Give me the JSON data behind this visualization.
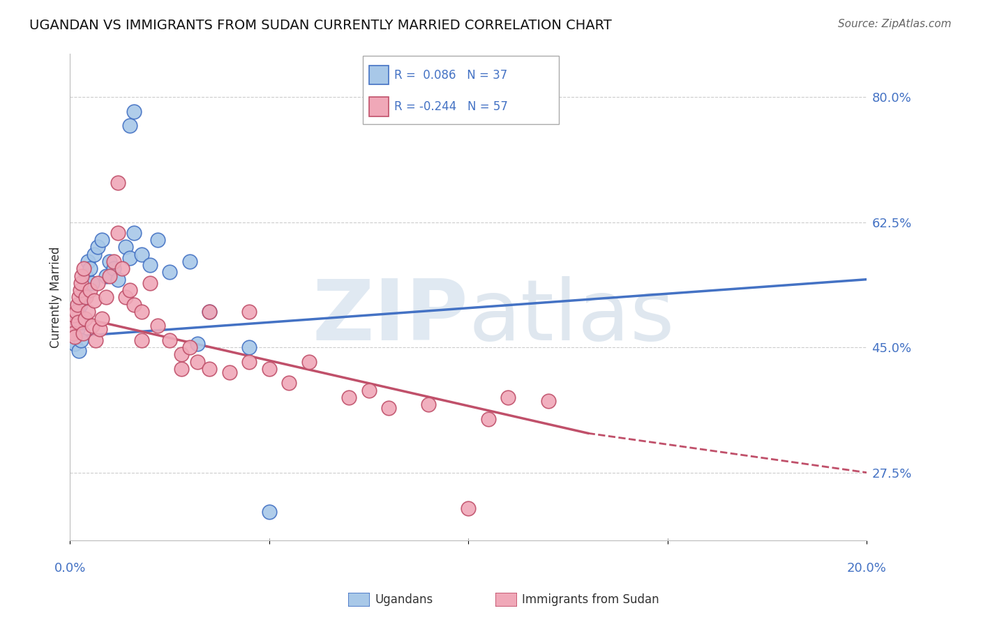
{
  "title": "UGANDAN VS IMMIGRANTS FROM SUDAN CURRENTLY MARRIED CORRELATION CHART",
  "source": "Source: ZipAtlas.com",
  "ylabel": "Currently Married",
  "r_ugandan": 0.086,
  "n_ugandan": 37,
  "r_sudan": -0.244,
  "n_sudan": 57,
  "y_ticks": [
    27.5,
    45.0,
    62.5,
    80.0
  ],
  "x_range": [
    0.0,
    20.0
  ],
  "y_range": [
    18.0,
    86.0
  ],
  "color_ugandan": "#A8C8E8",
  "color_sudan": "#F0A8B8",
  "line_color_ugandan": "#4472C4",
  "line_color_sudan": "#C0506A",
  "watermark_color": "#D0DCE8",
  "blue_trend_x0": 0.0,
  "blue_trend_y0": 46.5,
  "blue_trend_x1": 20.0,
  "blue_trend_y1": 54.5,
  "pink_solid_x0": 0.0,
  "pink_solid_y0": 49.5,
  "pink_solid_x1": 13.0,
  "pink_solid_y1": 33.0,
  "pink_dash_x0": 13.0,
  "pink_dash_y0": 33.0,
  "pink_dash_x1": 20.0,
  "pink_dash_y1": 27.5,
  "ugandan_x": [
    0.05,
    0.08,
    0.1,
    0.12,
    0.15,
    0.18,
    0.2,
    0.22,
    0.25,
    0.28,
    0.3,
    0.35,
    0.4,
    0.45,
    0.5,
    0.55,
    0.6,
    0.7,
    0.8,
    0.9,
    1.0,
    1.1,
    1.2,
    1.4,
    1.5,
    1.6,
    1.8,
    2.0,
    2.2,
    2.5,
    3.0,
    3.2,
    3.5,
    4.5,
    5.0,
    1.5,
    1.6
  ],
  "ugandan_y": [
    47.0,
    46.0,
    48.0,
    45.5,
    49.0,
    47.5,
    50.0,
    44.5,
    51.0,
    46.0,
    48.5,
    52.0,
    55.0,
    57.0,
    56.0,
    54.0,
    58.0,
    59.0,
    60.0,
    55.0,
    57.0,
    56.0,
    54.5,
    59.0,
    57.5,
    61.0,
    58.0,
    56.5,
    60.0,
    55.5,
    57.0,
    45.5,
    50.0,
    45.0,
    22.0,
    76.0,
    78.0
  ],
  "sudan_x": [
    0.05,
    0.08,
    0.1,
    0.12,
    0.15,
    0.18,
    0.2,
    0.22,
    0.25,
    0.28,
    0.3,
    0.32,
    0.35,
    0.38,
    0.4,
    0.45,
    0.5,
    0.55,
    0.6,
    0.65,
    0.7,
    0.75,
    0.8,
    0.9,
    1.0,
    1.1,
    1.2,
    1.3,
    1.4,
    1.5,
    1.6,
    1.8,
    2.0,
    2.2,
    2.5,
    2.8,
    3.0,
    3.2,
    3.5,
    4.0,
    4.5,
    5.0,
    5.5,
    6.0,
    7.0,
    7.5,
    8.0,
    9.0,
    10.0,
    11.0,
    12.0,
    2.8,
    1.2,
    1.8,
    3.5,
    4.5,
    10.5
  ],
  "sudan_y": [
    48.0,
    47.0,
    49.5,
    46.5,
    50.0,
    51.0,
    48.5,
    52.0,
    53.0,
    54.0,
    55.0,
    47.0,
    56.0,
    49.0,
    52.0,
    50.0,
    53.0,
    48.0,
    51.5,
    46.0,
    54.0,
    47.5,
    49.0,
    52.0,
    55.0,
    57.0,
    68.0,
    56.0,
    52.0,
    53.0,
    51.0,
    50.0,
    54.0,
    48.0,
    46.0,
    44.0,
    45.0,
    43.0,
    42.0,
    41.5,
    43.0,
    42.0,
    40.0,
    43.0,
    38.0,
    39.0,
    36.5,
    37.0,
    22.5,
    38.0,
    37.5,
    42.0,
    61.0,
    46.0,
    50.0,
    50.0,
    35.0
  ]
}
